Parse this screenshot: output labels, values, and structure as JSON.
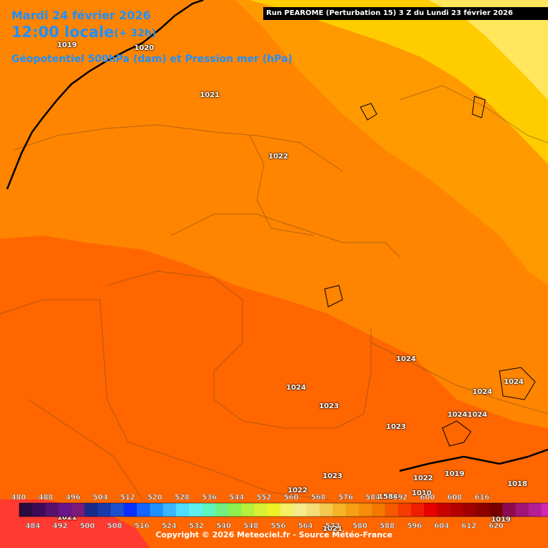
{
  "header": {
    "date": "Mardi 24 février 2026",
    "time": "12:00 locale",
    "offset": "(+ 32h)",
    "product": "Géopotentiel 500hPa (dam) et Pression mer (hPa)",
    "run": "Run PEAROME (Perturbation 15) 3 Z du Lundi 23 février 2026"
  },
  "pressure_labels": [
    "1019",
    "1020",
    "1021",
    "1022",
    "1024",
    "1024",
    "1024",
    "1024",
    "1024",
    "1024",
    "1023",
    "1023",
    "1023",
    "1022",
    "1022",
    "1019",
    "1018",
    "1021",
    "1021",
    "1019",
    "1010",
    "1584"
  ],
  "legend": {
    "top_values": [
      "480",
      "488",
      "496",
      "504",
      "512",
      "520",
      "528",
      "536",
      "544",
      "552",
      "560",
      "568",
      "576",
      "584",
      "592",
      "600",
      "608",
      "616"
    ],
    "bottom_values": [
      "484",
      "492",
      "500",
      "508",
      "516",
      "524",
      "532",
      "540",
      "548",
      "556",
      "564",
      "572",
      "580",
      "588",
      "596",
      "604",
      "612",
      "620"
    ],
    "colors": [
      "#2b0a3d",
      "#3d0a55",
      "#58106f",
      "#6a1489",
      "#7a1a7a",
      "#1a2a8a",
      "#1a3aa8",
      "#1e4fd0",
      "#0a2fff",
      "#1464ff",
      "#1e90ff",
      "#3cb4ff",
      "#4fdcff",
      "#5ef0f0",
      "#5cf5c0",
      "#70f080",
      "#8cf050",
      "#b4f03c",
      "#d8f032",
      "#f0f028",
      "#f5f064",
      "#f5eb8c",
      "#f5dc78",
      "#f5c850",
      "#f5b428",
      "#f5a014",
      "#f58c0a",
      "#f57800",
      "#f55a00",
      "#f53c00",
      "#f01e00",
      "#e60000",
      "#c80000",
      "#b40000",
      "#a00000",
      "#8c0000",
      "#780000",
      "#8c0a50",
      "#a01478",
      "#b41e96",
      "#d228b4",
      "#e632d2",
      "#f050f0",
      "#f07cf0"
    ]
  },
  "copyright": "Copyright © 2026 Meteociel.fr - Source Météo-France"
}
